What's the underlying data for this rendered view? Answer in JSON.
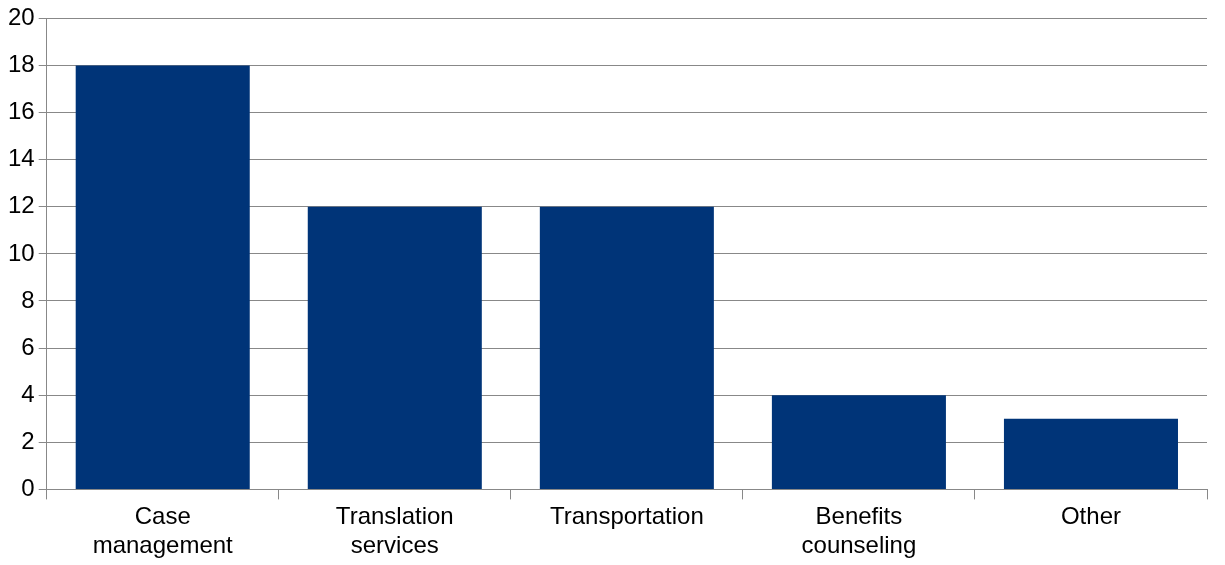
{
  "chart_data": {
    "type": "bar",
    "categories": [
      "Case management",
      "Translation services",
      "Transportation",
      "Benefits counseling",
      "Other"
    ],
    "values": [
      18,
      12,
      12,
      4,
      3
    ],
    "color": "#003478",
    "ylim": [
      0,
      20
    ],
    "yticks": [
      0,
      2,
      4,
      6,
      8,
      10,
      12,
      14,
      16,
      18,
      20
    ],
    "grid": "y",
    "legend": false
  }
}
